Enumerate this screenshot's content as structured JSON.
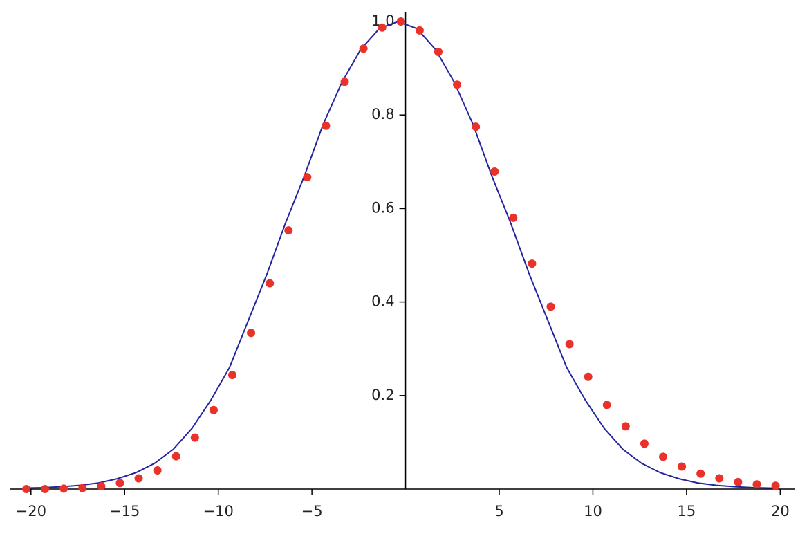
{
  "chart_data": {
    "type": "line_scatter",
    "xlim": [
      -21.1,
      20.8
    ],
    "ylim": [
      0,
      1.02
    ],
    "xticks": [
      {
        "value": -20,
        "label": "−20"
      },
      {
        "value": -15,
        "label": "−15"
      },
      {
        "value": -10,
        "label": "−10"
      },
      {
        "value": -5,
        "label": "−5"
      },
      5,
      10,
      15,
      20
    ],
    "yticks": [
      0.2,
      0.4,
      0.6,
      0.8,
      {
        "value": 1,
        "label": "1.0"
      }
    ],
    "curve": {
      "color": "#2424a0",
      "x": [
        -20.4,
        -19.4,
        -18.4,
        -17.4,
        -16.4,
        -15.4,
        -14.4,
        -13.4,
        -12.4,
        -11.4,
        -10.4,
        -9.4,
        -8.4,
        -7.4,
        -6.4,
        -5.4,
        -4.4,
        -3.4,
        -2.4,
        -1.4,
        -0.4,
        0.6,
        1.6,
        2.6,
        3.6,
        4.6,
        5.6,
        6.6,
        7.6,
        8.6,
        9.6,
        10.6,
        11.6,
        12.6,
        13.6,
        14.6,
        15.6,
        16.6,
        17.6,
        18.6,
        19.6
      ],
      "values": [
        0.002,
        0.003,
        0.005,
        0.008,
        0.013,
        0.022,
        0.035,
        0.055,
        0.085,
        0.13,
        0.19,
        0.26,
        0.36,
        0.46,
        0.57,
        0.67,
        0.78,
        0.87,
        0.94,
        0.985,
        1,
        0.985,
        0.94,
        0.87,
        0.78,
        0.67,
        0.57,
        0.46,
        0.36,
        0.26,
        0.19,
        0.13,
        0.085,
        0.055,
        0.035,
        0.022,
        0.013,
        0.008,
        0.005,
        0.003,
        0.002
      ]
    },
    "points": {
      "color": "#e8322a",
      "x": [
        -20.25,
        -19.25,
        -18.25,
        -17.25,
        -16.25,
        -15.25,
        -14.25,
        -13.25,
        -12.25,
        -11.25,
        -10.25,
        -9.25,
        -8.25,
        -7.25,
        -6.25,
        -5.25,
        -4.25,
        -3.25,
        -2.25,
        -1.25,
        -0.25,
        0.75,
        1.75,
        2.75,
        3.75,
        4.75,
        5.75,
        6.75,
        7.75,
        8.75,
        9.75,
        10.75,
        11.75,
        12.75,
        13.75,
        14.75,
        15.75,
        16.75,
        17.75,
        18.75,
        19.75
      ],
      "values": [
        0,
        0,
        0.001,
        0.002,
        0.006,
        0.013,
        0.023,
        0.04,
        0.07,
        0.11,
        0.169,
        0.244,
        0.334,
        0.44,
        0.553,
        0.667,
        0.777,
        0.871,
        0.942,
        0.987,
        1,
        0.981,
        0.935,
        0.865,
        0.775,
        0.679,
        0.58,
        0.482,
        0.39,
        0.31,
        0.24,
        0.18,
        0.134,
        0.097,
        0.069,
        0.048,
        0.033,
        0.023,
        0.015,
        0.01,
        0.007
      ]
    }
  }
}
